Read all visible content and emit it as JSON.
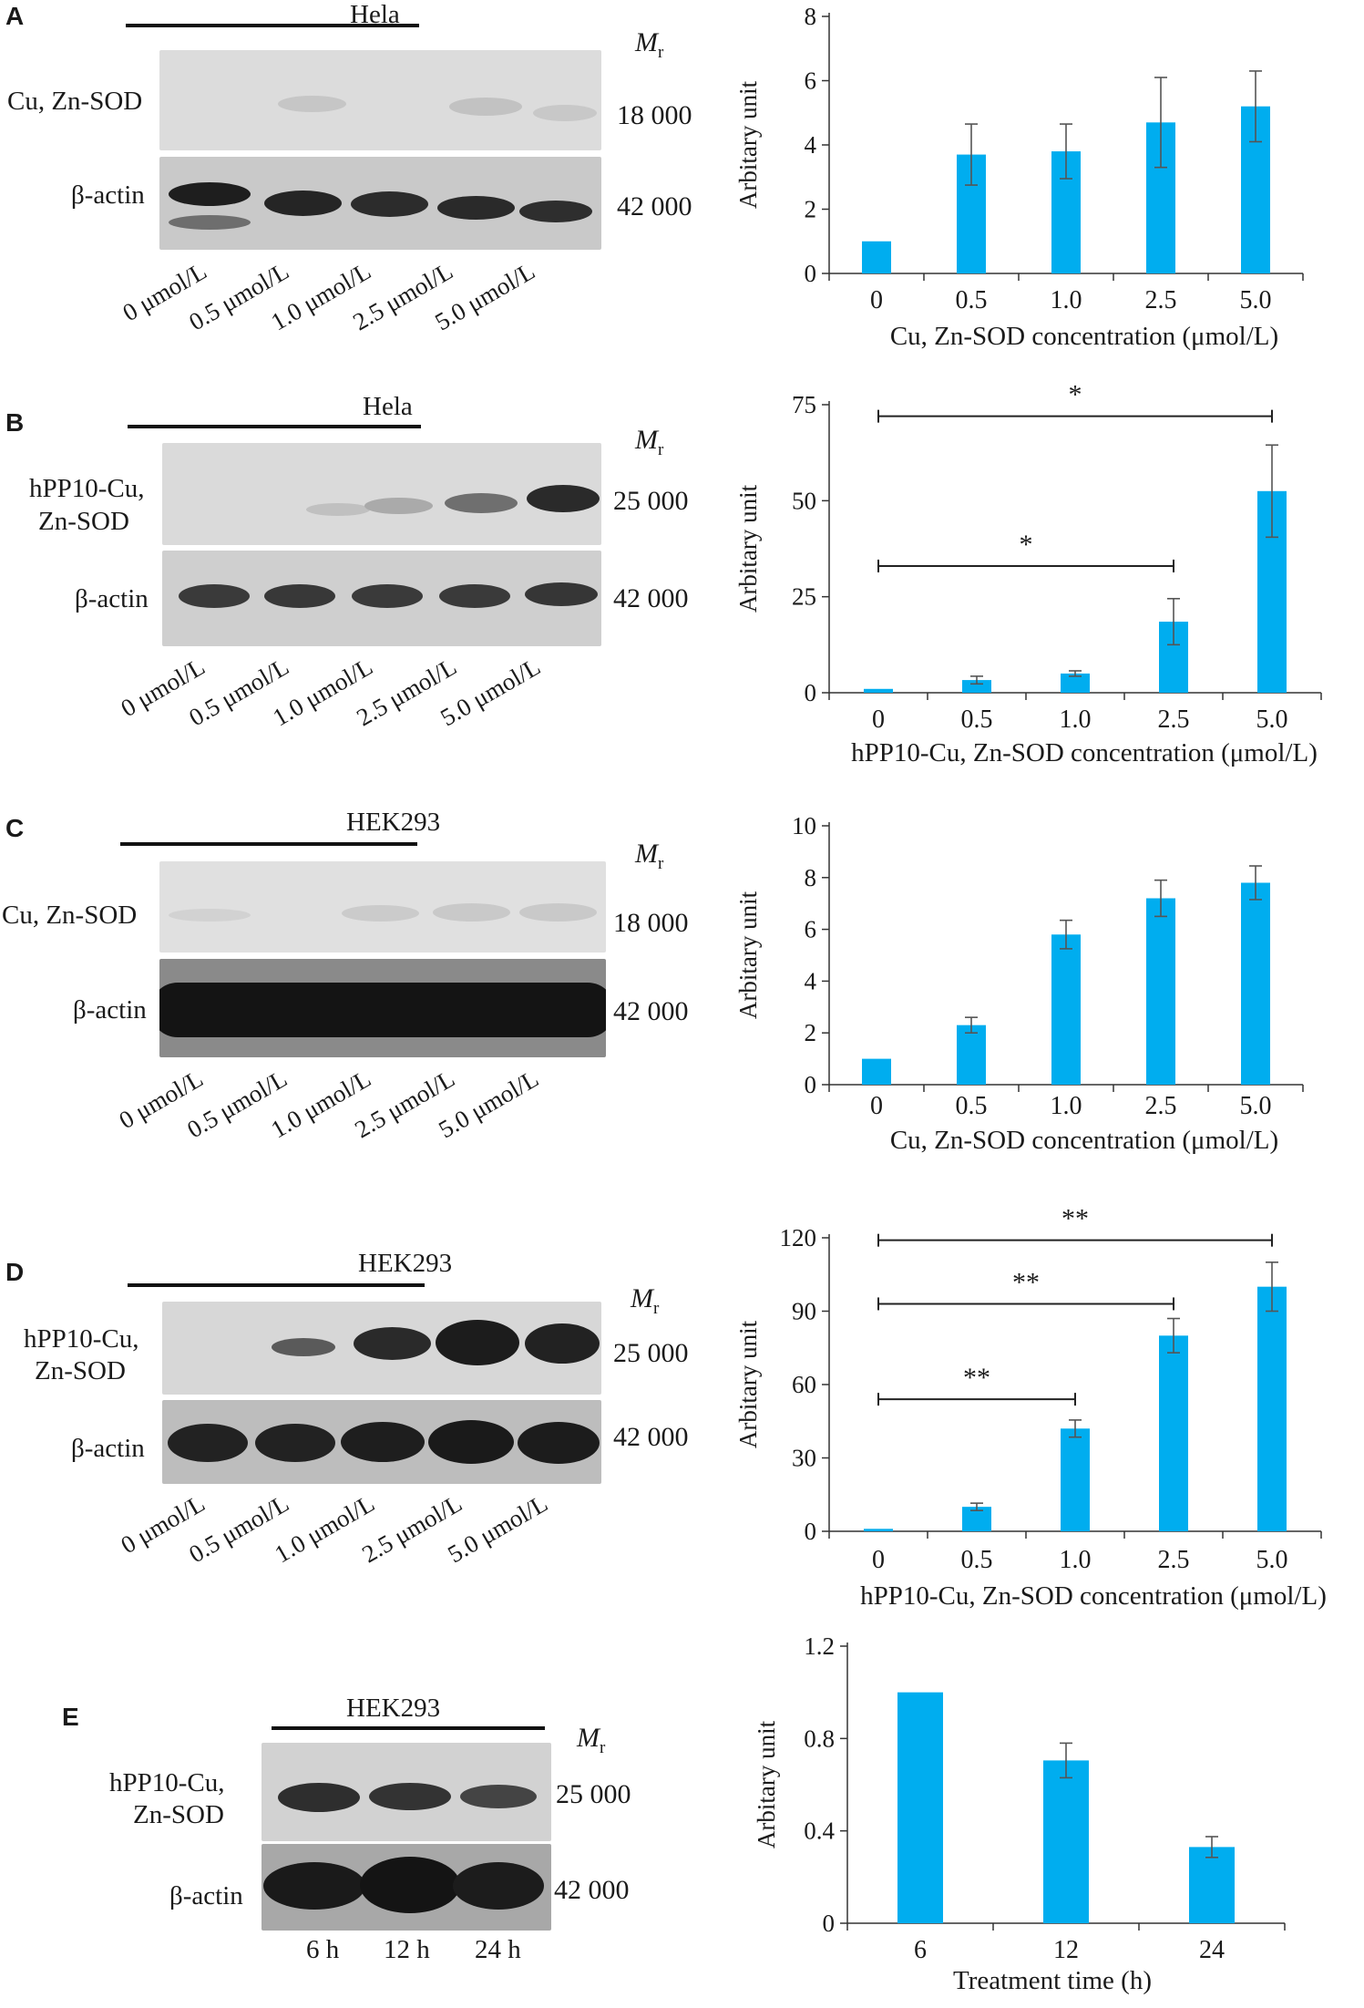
{
  "panels": [
    {
      "id": "A",
      "label": "A",
      "cell_line": "Hela",
      "mr_label": "M",
      "mr_sub": "r",
      "rows": [
        {
          "label": "Cu, Zn-SOD",
          "mw": "18 000"
        },
        {
          "label": "β-actin",
          "mw": "42 000"
        }
      ],
      "lanes": [
        "0 μmol/L",
        "0.5 μmol/L",
        "1.0 μmol/L",
        "2.5 μmol/L",
        "5.0 μmol/L"
      ]
    },
    {
      "id": "B",
      "label": "B",
      "cell_line": "Hela",
      "mr_label": "M",
      "mr_sub": "r",
      "rows": [
        {
          "label": "hPP10-Cu,",
          "label2": "Zn-SOD",
          "mw": "25 000"
        },
        {
          "label": "β-actin",
          "mw": "42 000"
        }
      ],
      "lanes": [
        "0 μmol/L",
        "0.5 μmol/L",
        "1.0 μmol/L",
        "2.5 μmol/L",
        "5.0 μmol/L"
      ]
    },
    {
      "id": "C",
      "label": "C",
      "cell_line": "HEK293",
      "mr_label": "M",
      "mr_sub": "r",
      "rows": [
        {
          "label": "Cu, Zn-SOD",
          "mw": "18 000"
        },
        {
          "label": "β-actin",
          "mw": "42 000"
        }
      ],
      "lanes": [
        "0 μmol/L",
        "0.5 μmol/L",
        "1.0 μmol/L",
        "2.5 μmol/L",
        "5.0 μmol/L"
      ]
    },
    {
      "id": "D",
      "label": "D",
      "cell_line": "HEK293",
      "mr_label": "M",
      "mr_sub": "r",
      "rows": [
        {
          "label": "hPP10-Cu,",
          "label2": "Zn-SOD",
          "mw": "25 000"
        },
        {
          "label": "β-actin",
          "mw": "42 000"
        }
      ],
      "lanes": [
        "0 μmol/L",
        "0.5 μmol/L",
        "1.0 μmol/L",
        "2.5 μmol/L",
        "5.0 μmol/L"
      ]
    },
    {
      "id": "E",
      "label": "E",
      "cell_line": "HEK293",
      "mr_label": "M",
      "mr_sub": "r",
      "rows": [
        {
          "label": "hPP10-Cu,",
          "label2": "Zn-SOD",
          "mw": "25 000"
        },
        {
          "label": "β-actin",
          "mw": "42 000"
        }
      ],
      "lanes": [
        "6 h",
        "12 h",
        "24 h"
      ]
    }
  ],
  "chart_data": [
    {
      "panel": "A",
      "type": "bar",
      "categories": [
        "0",
        "0.5",
        "1.0",
        "2.5",
        "5.0"
      ],
      "values": [
        1.0,
        3.7,
        3.8,
        4.7,
        5.2
      ],
      "errors": [
        0,
        0.95,
        0.85,
        1.4,
        1.1
      ],
      "ylabel": "Arbitary unit",
      "xlabel": "Cu, Zn-SOD concentration (μmol/L)",
      "ylim": [
        0,
        8
      ],
      "yticks": [
        "0",
        "2",
        "4",
        "6",
        "8"
      ],
      "significance": [],
      "color": "#00adef"
    },
    {
      "panel": "B",
      "type": "bar",
      "categories": [
        "0",
        "0.5",
        "1.0",
        "2.5",
        "5.0"
      ],
      "values": [
        1.0,
        3.3,
        5.0,
        18.5,
        52.5
      ],
      "errors": [
        0,
        1.0,
        0.7,
        6.0,
        12.0
      ],
      "ylabel": "Arbitary unit",
      "xlabel": "hPP10-Cu, Zn-SOD concentration (μmol/L)",
      "ylim": [
        0,
        75
      ],
      "yticks": [
        "0",
        "25",
        "50",
        "75"
      ],
      "significance": [
        {
          "from": 0,
          "to": 4,
          "label": "*",
          "level": 72
        },
        {
          "from": 0,
          "to": 3,
          "label": "*",
          "level": 33
        }
      ],
      "color": "#00adef"
    },
    {
      "panel": "C",
      "type": "bar",
      "categories": [
        "0",
        "0.5",
        "1.0",
        "2.5",
        "5.0"
      ],
      "values": [
        1.0,
        2.3,
        5.8,
        7.2,
        7.8
      ],
      "errors": [
        0,
        0.3,
        0.55,
        0.7,
        0.65
      ],
      "ylabel": "Arbitary unit",
      "xlabel": "Cu, Zn-SOD concentration (μmol/L)",
      "ylim": [
        0,
        10
      ],
      "yticks": [
        "0",
        "2",
        "4",
        "6",
        "8",
        "10"
      ],
      "significance": [],
      "color": "#00adef"
    },
    {
      "panel": "D",
      "type": "bar",
      "categories": [
        "0",
        "0.5",
        "1.0",
        "2.5",
        "5.0"
      ],
      "values": [
        1.0,
        10.0,
        42.0,
        80.0,
        100.0
      ],
      "errors": [
        0,
        1.5,
        3.5,
        7.0,
        10.0
      ],
      "ylabel": "Arbitary unit",
      "xlabel": "hPP10-Cu, Zn-SOD concentration (μmol/L)",
      "ylim": [
        0,
        120
      ],
      "yticks": [
        "0",
        "30",
        "60",
        "90",
        "120"
      ],
      "significance": [
        {
          "from": 0,
          "to": 4,
          "label": "**",
          "level": 119
        },
        {
          "from": 0,
          "to": 3,
          "label": "**",
          "level": 93
        },
        {
          "from": 0,
          "to": 2,
          "label": "**",
          "level": 54
        }
      ],
      "color": "#00adef"
    },
    {
      "panel": "E",
      "type": "bar",
      "categories": [
        "6",
        "12",
        "24"
      ],
      "values": [
        1.0,
        0.705,
        0.33
      ],
      "errors": [
        0,
        0.075,
        0.045
      ],
      "ylabel": "Arbitary unit",
      "xlabel": "Treatment time (h)",
      "ylim": [
        0,
        1.2
      ],
      "yticks": [
        "0",
        "0.4",
        "0.8",
        "1.2"
      ],
      "significance": [],
      "color": "#00adef"
    }
  ]
}
